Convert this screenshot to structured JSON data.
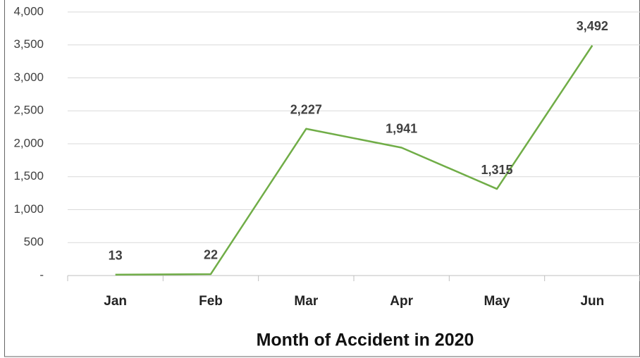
{
  "chart_data": {
    "type": "line",
    "x_label": "Month of Accident in 2020",
    "categories": [
      "Jan",
      "Feb",
      "Mar",
      "Apr",
      "May",
      "Jun"
    ],
    "values": [
      13,
      22,
      2227,
      1941,
      1315,
      3492
    ],
    "value_labels": [
      "13",
      "22",
      "2,227",
      "1,941",
      "1,315",
      "3,492"
    ],
    "color": "#70ad47",
    "ylim": [
      0,
      4000
    ],
    "yticks": [
      {
        "value": 0,
        "label": "-"
      },
      500,
      {
        "value": 1000,
        "label": "1,000"
      },
      {
        "value": 1500,
        "label": "1,500"
      },
      {
        "value": 2000,
        "label": "2,000"
      },
      {
        "value": 2500,
        "label": "2,500"
      },
      {
        "value": 3000,
        "label": "3,000"
      },
      {
        "value": 3500,
        "label": "3,500"
      },
      {
        "value": 4000,
        "label": "4,000"
      }
    ],
    "grid": true
  }
}
